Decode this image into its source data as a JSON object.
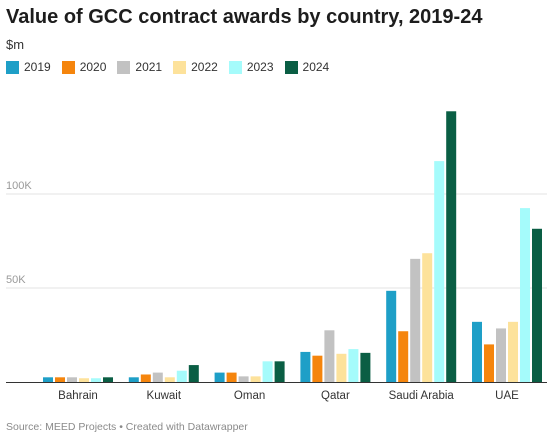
{
  "title": "Value of GCC contract awards by country, 2019-24",
  "unit": "$m",
  "footer": "Source: MEED Projects • Created with Datawrapper",
  "colors": {
    "2019": "#1e9fc7",
    "2020": "#f5850d",
    "2021": "#c2c2c2",
    "2022": "#fde29b",
    "2023": "#a5fbfb",
    "2024": "#0a5e44",
    "grid": "#e3e3e3",
    "baseline": "#333333"
  },
  "chart_data": {
    "type": "bar",
    "title": "Value of GCC contract awards by country, 2019-24",
    "ylabel": "$m",
    "xlabel": "",
    "categories": [
      "Bahrain",
      "Kuwait",
      "Oman",
      "Qatar",
      "Saudi Arabia",
      "UAE"
    ],
    "series": [
      {
        "name": "2019",
        "values": [
          2500,
          2500,
          5000,
          16000,
          48500,
          32000
        ]
      },
      {
        "name": "2020",
        "values": [
          2500,
          4000,
          5000,
          14000,
          27000,
          20000
        ]
      },
      {
        "name": "2021",
        "values": [
          2500,
          5000,
          3000,
          27500,
          65500,
          28500
        ]
      },
      {
        "name": "2022",
        "values": [
          2000,
          2500,
          3000,
          15000,
          68500,
          32000
        ]
      },
      {
        "name": "2023",
        "values": [
          2000,
          6000,
          11000,
          17500,
          117500,
          92500
        ]
      },
      {
        "name": "2024",
        "values": [
          2500,
          9000,
          11000,
          15500,
          144000,
          81500
        ]
      }
    ],
    "ylim": [
      0,
      150000
    ],
    "yticks": [
      50000,
      100000
    ],
    "ytick_labels": [
      "50K",
      "100K"
    ],
    "grid": true,
    "legend": "top-left"
  }
}
